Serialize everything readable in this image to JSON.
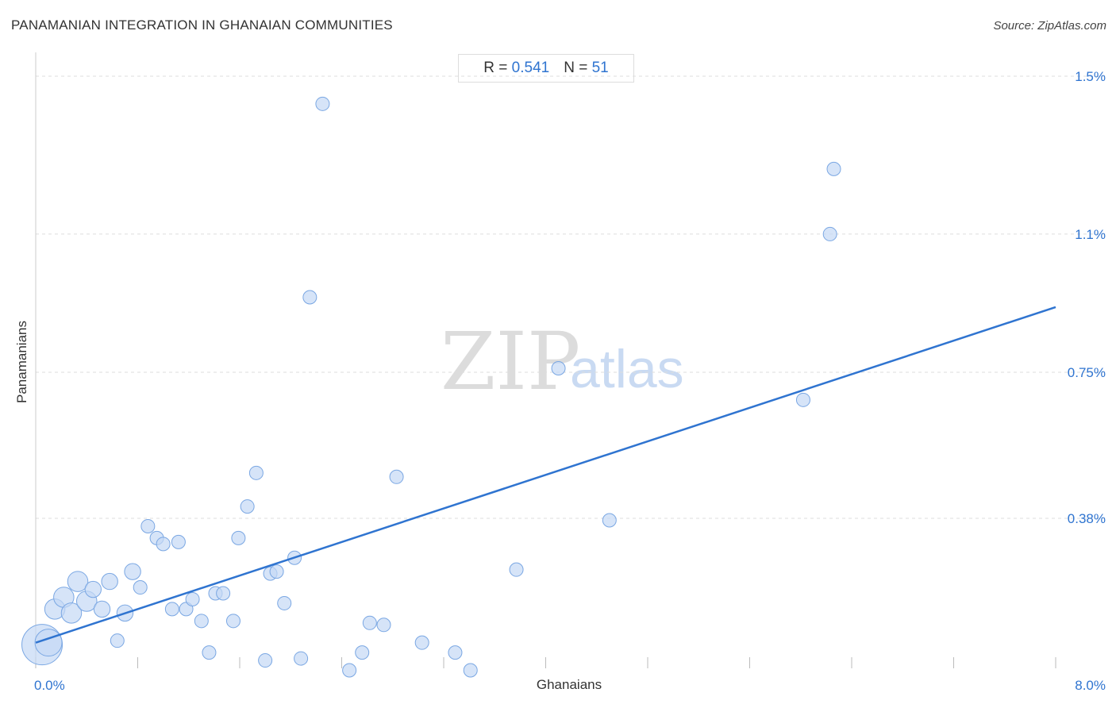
{
  "title": "PANAMANIAN INTEGRATION IN GHANAIAN COMMUNITIES",
  "source": "Source: ZipAtlas.com",
  "stats": {
    "r_label": "R =",
    "r_value": "0.541",
    "n_label": "N =",
    "n_value": "51"
  },
  "watermark": {
    "zip": "ZIP",
    "atlas": "atlas"
  },
  "colors": {
    "accent": "#2f74d0",
    "point_fill": "#c5d9f5",
    "point_stroke": "#7aa7e3",
    "grid": "#dddddd"
  },
  "chart_data": {
    "type": "scatter",
    "title": "PANAMANIAN INTEGRATION IN GHANAIAN COMMUNITIES",
    "xlabel": "Ghanaians",
    "ylabel": "Panamanians",
    "xlim": [
      0,
      8.0
    ],
    "ylim": [
      0,
      1.55
    ],
    "x_tick_labels": [
      {
        "value": 0,
        "label": "0.0%"
      },
      {
        "value": 8.0,
        "label": "8.0%"
      }
    ],
    "y_tick_labels": [
      {
        "value": 0.38,
        "label": "0.38%"
      },
      {
        "value": 0.75,
        "label": "0.75%"
      },
      {
        "value": 1.1,
        "label": "1.1%"
      },
      {
        "value": 1.5,
        "label": "1.5%"
      }
    ],
    "grid": true,
    "points": [
      {
        "x": 0.05,
        "y": 0.06,
        "size": 3
      },
      {
        "x": 0.1,
        "y": 0.065,
        "size": 2
      },
      {
        "x": 0.15,
        "y": 0.15,
        "size": 1.5
      },
      {
        "x": 0.22,
        "y": 0.18,
        "size": 1.5
      },
      {
        "x": 0.28,
        "y": 0.14,
        "size": 1.5
      },
      {
        "x": 0.33,
        "y": 0.22,
        "size": 1.5
      },
      {
        "x": 0.4,
        "y": 0.17,
        "size": 1.5
      },
      {
        "x": 0.45,
        "y": 0.2,
        "size": 1.2
      },
      {
        "x": 0.52,
        "y": 0.15,
        "size": 1.2
      },
      {
        "x": 0.58,
        "y": 0.22,
        "size": 1.2
      },
      {
        "x": 0.64,
        "y": 0.07,
        "size": 1
      },
      {
        "x": 0.7,
        "y": 0.14,
        "size": 1.2
      },
      {
        "x": 0.76,
        "y": 0.245,
        "size": 1.2
      },
      {
        "x": 0.82,
        "y": 0.205,
        "size": 1
      },
      {
        "x": 0.88,
        "y": 0.36,
        "size": 1
      },
      {
        "x": 0.95,
        "y": 0.33,
        "size": 1
      },
      {
        "x": 1.0,
        "y": 0.315,
        "size": 1
      },
      {
        "x": 1.07,
        "y": 0.15,
        "size": 1
      },
      {
        "x": 1.12,
        "y": 0.32,
        "size": 1
      },
      {
        "x": 1.18,
        "y": 0.15,
        "size": 1
      },
      {
        "x": 1.23,
        "y": 0.175,
        "size": 1
      },
      {
        "x": 1.3,
        "y": 0.12,
        "size": 1
      },
      {
        "x": 1.36,
        "y": 0.04,
        "size": 1
      },
      {
        "x": 1.41,
        "y": 0.19,
        "size": 1
      },
      {
        "x": 1.47,
        "y": 0.19,
        "size": 1
      },
      {
        "x": 1.55,
        "y": 0.12,
        "size": 1
      },
      {
        "x": 1.59,
        "y": 0.33,
        "size": 1
      },
      {
        "x": 1.66,
        "y": 0.41,
        "size": 1
      },
      {
        "x": 1.73,
        "y": 0.495,
        "size": 1
      },
      {
        "x": 1.8,
        "y": 0.02,
        "size": 1
      },
      {
        "x": 1.84,
        "y": 0.24,
        "size": 1
      },
      {
        "x": 1.89,
        "y": 0.245,
        "size": 1
      },
      {
        "x": 1.95,
        "y": 0.165,
        "size": 1
      },
      {
        "x": 2.03,
        "y": 0.28,
        "size": 1
      },
      {
        "x": 2.08,
        "y": 0.025,
        "size": 1
      },
      {
        "x": 2.15,
        "y": 0.94,
        "size": 1
      },
      {
        "x": 2.25,
        "y": 1.43,
        "size": 1
      },
      {
        "x": 2.46,
        "y": -0.005,
        "size": 1
      },
      {
        "x": 2.56,
        "y": 0.04,
        "size": 1
      },
      {
        "x": 2.62,
        "y": 0.115,
        "size": 1
      },
      {
        "x": 2.73,
        "y": 0.11,
        "size": 1
      },
      {
        "x": 2.83,
        "y": 0.485,
        "size": 1
      },
      {
        "x": 3.03,
        "y": 0.065,
        "size": 1
      },
      {
        "x": 3.29,
        "y": 0.04,
        "size": 1
      },
      {
        "x": 3.41,
        "y": -0.005,
        "size": 1
      },
      {
        "x": 3.77,
        "y": 0.25,
        "size": 1
      },
      {
        "x": 4.1,
        "y": 0.76,
        "size": 1
      },
      {
        "x": 4.5,
        "y": 0.375,
        "size": 1
      },
      {
        "x": 6.02,
        "y": 0.68,
        "size": 1
      },
      {
        "x": 6.23,
        "y": 1.1,
        "size": 1
      },
      {
        "x": 6.26,
        "y": 1.265,
        "size": 1
      }
    ],
    "trendline": {
      "x": [
        0,
        8.0
      ],
      "y": [
        0.065,
        0.915
      ]
    }
  }
}
